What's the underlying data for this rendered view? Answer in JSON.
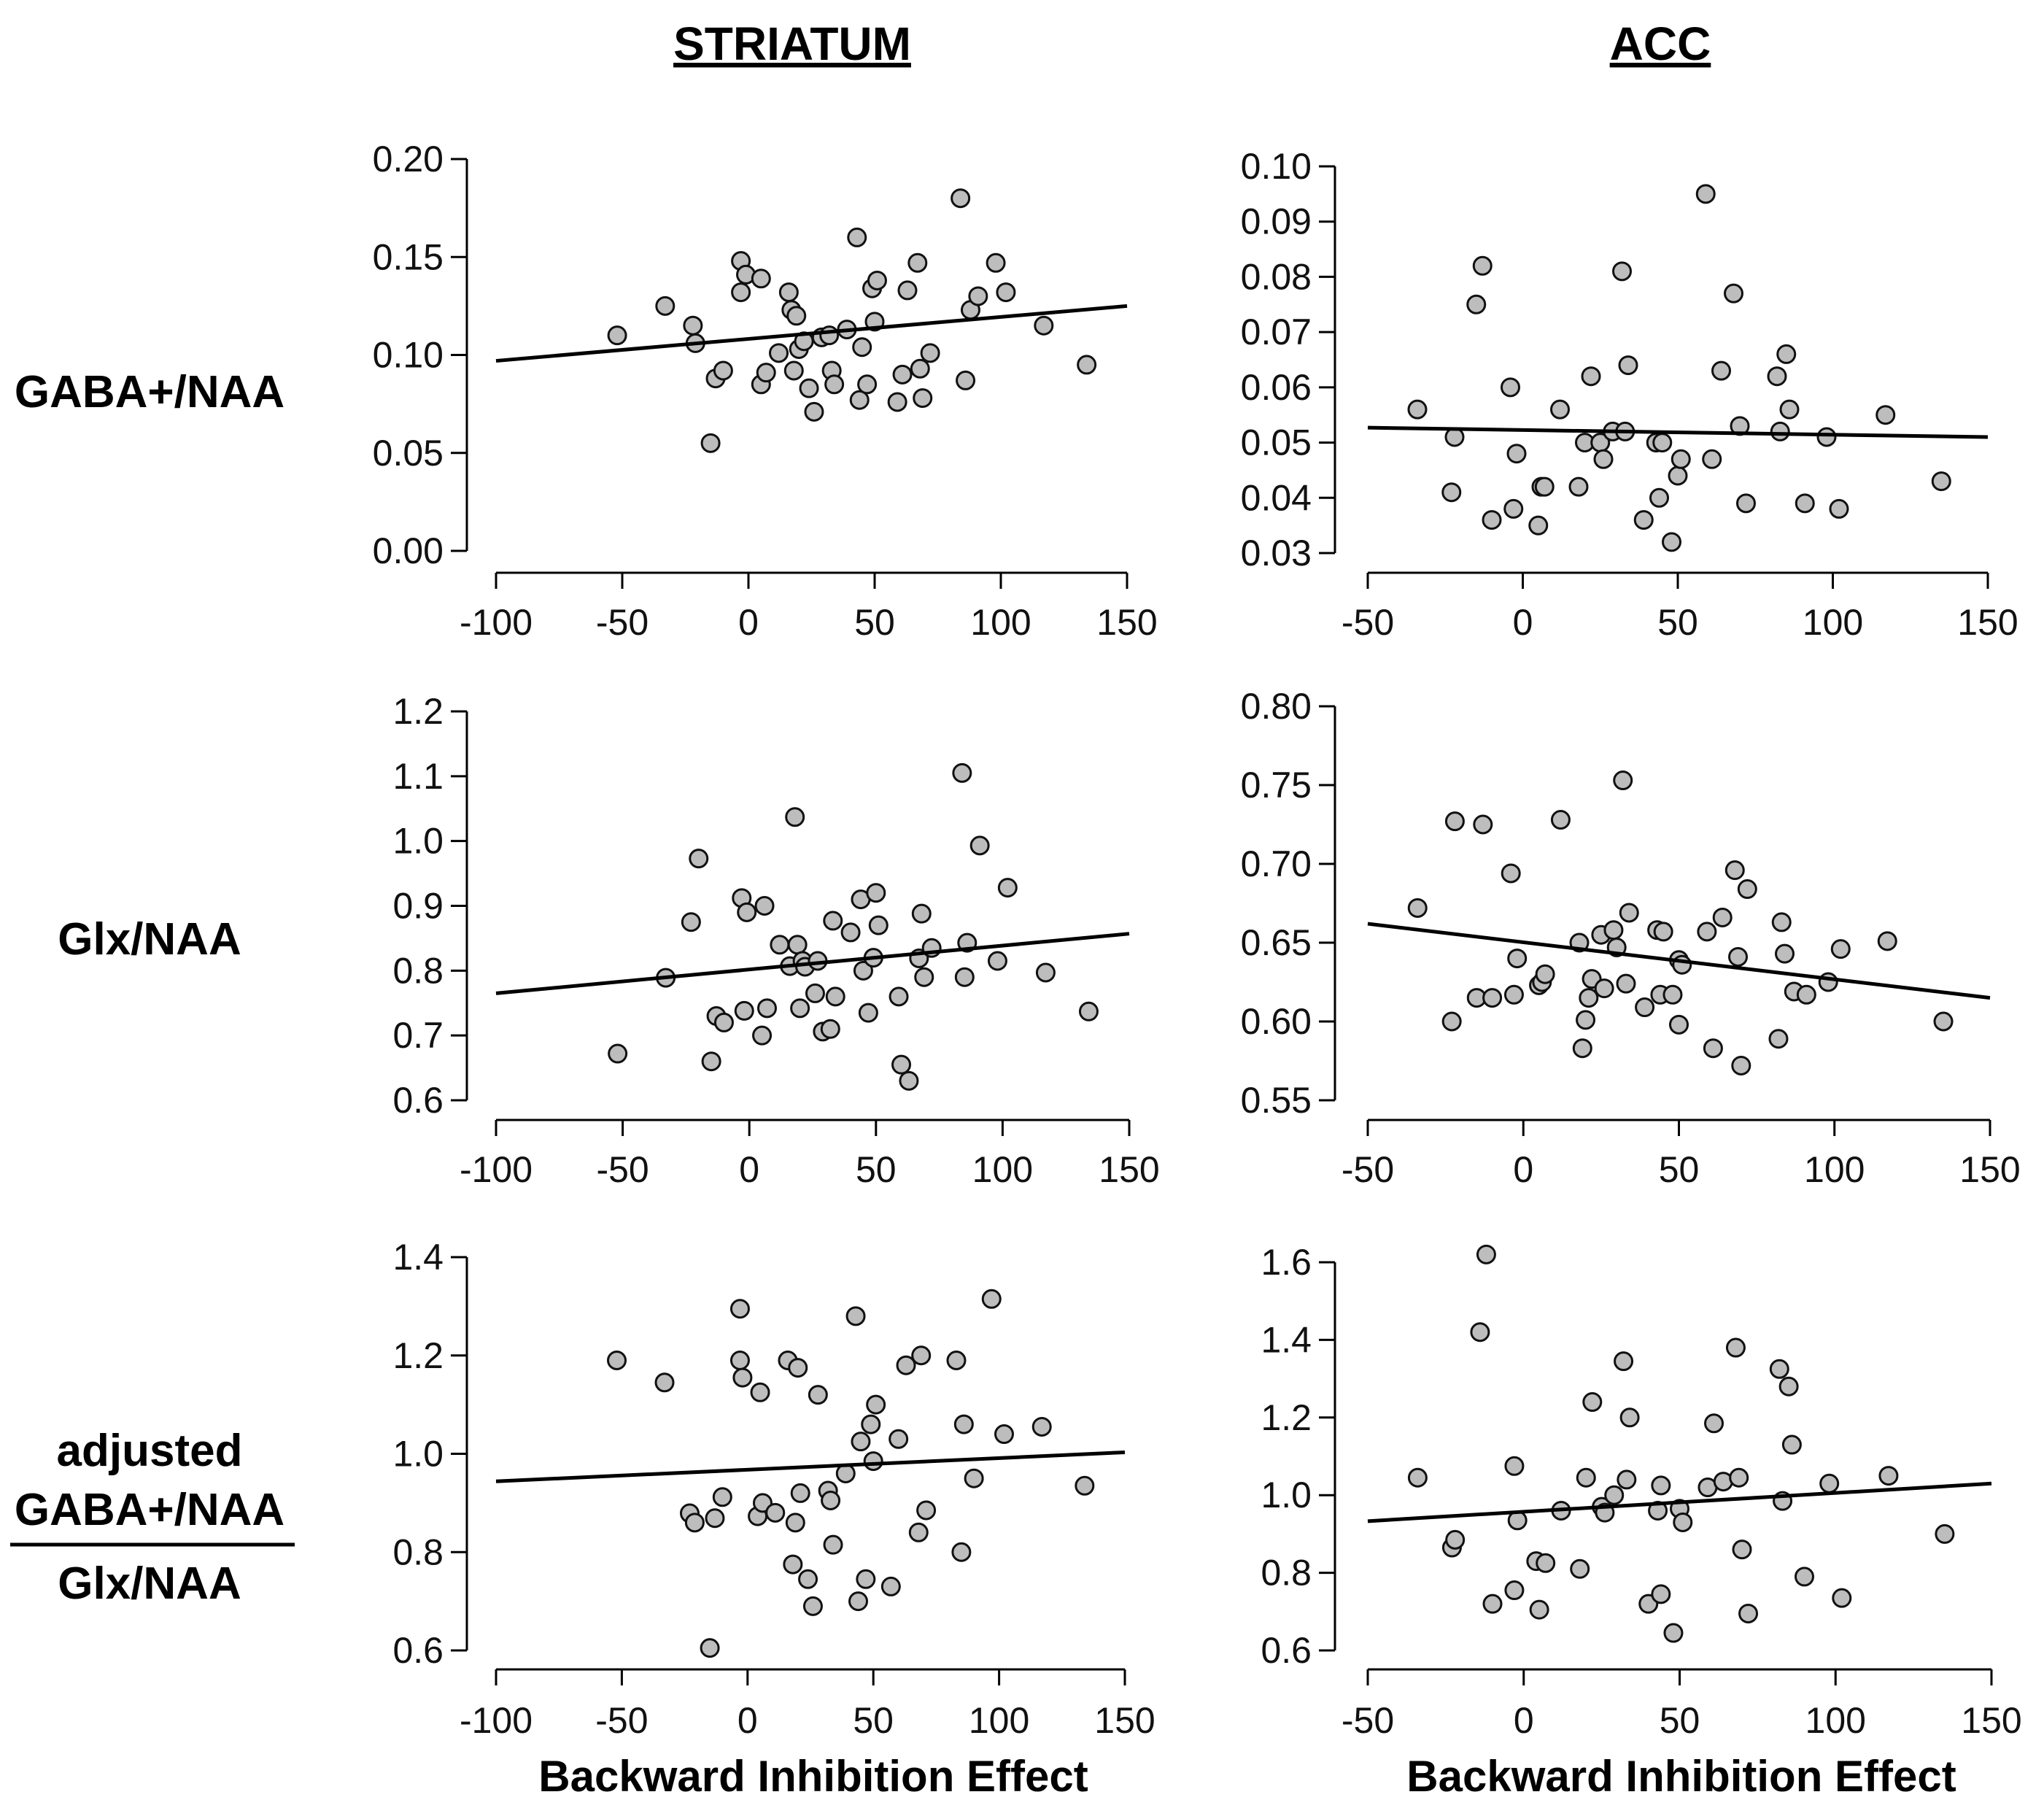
{
  "figure": {
    "col_titles": [
      "STRIATUM",
      "ACC"
    ],
    "row_labels": [
      {
        "lines": [
          "GABA+/NAA"
        ]
      },
      {
        "lines": [
          "Glx/NAA"
        ]
      },
      {
        "numerator": [
          "adjusted",
          "GABA+/NAA"
        ],
        "denominator": "Glx/NAA"
      }
    ],
    "xlabel": "Backward Inhibition Effect"
  },
  "chart_data": [
    {
      "id": "striatum-gaba",
      "type": "scatter",
      "xlabel": "Backward Inhibition Effect",
      "ylabel": "GABA+/NAA",
      "xlim": [
        -100,
        150
      ],
      "ylim": [
        0.0,
        0.2
      ],
      "xticks": [
        -100,
        -50,
        0,
        50,
        100,
        150
      ],
      "xtick_labels": [
        "-100",
        "-50",
        "0",
        "50",
        "100",
        "150"
      ],
      "yticks": [
        0.0,
        0.05,
        0.1,
        0.15,
        0.2
      ],
      "ytick_labels": [
        "0.00",
        "0.05",
        "0.10",
        "0.15",
        "0.20"
      ],
      "fit_line": {
        "x": [
          -100,
          150
        ],
        "y": [
          0.097,
          0.125
        ]
      },
      "x": [
        -52,
        -33,
        -22,
        -21,
        -15,
        -13,
        -10,
        -3,
        -3,
        -1,
        5,
        5,
        7,
        12,
        16,
        17,
        18,
        19,
        20,
        22,
        24,
        26,
        29,
        32,
        33,
        34,
        39,
        43,
        44,
        45,
        47,
        49,
        50,
        51,
        59,
        61,
        63,
        67,
        68,
        69,
        72,
        84,
        86,
        88,
        91,
        98,
        102,
        117,
        134
      ],
      "y": [
        0.11,
        0.125,
        0.115,
        0.106,
        0.055,
        0.088,
        0.092,
        0.148,
        0.132,
        0.141,
        0.085,
        0.139,
        0.091,
        0.101,
        0.132,
        0.123,
        0.092,
        0.12,
        0.103,
        0.107,
        0.083,
        0.071,
        0.109,
        0.11,
        0.092,
        0.085,
        0.113,
        0.16,
        0.077,
        0.104,
        0.085,
        0.134,
        0.117,
        0.138,
        0.076,
        0.09,
        0.133,
        0.147,
        0.093,
        0.078,
        0.101,
        0.18,
        0.087,
        0.123,
        0.13,
        0.147,
        0.132,
        0.115,
        0.095
      ]
    },
    {
      "id": "acc-gaba",
      "type": "scatter",
      "xlabel": "Backward Inhibition Effect",
      "ylabel": "GABA+/NAA",
      "xlim": [
        -50,
        150
      ],
      "ylim": [
        0.03,
        0.1
      ],
      "xticks": [
        -50,
        0,
        50,
        100,
        150
      ],
      "xtick_labels": [
        "-50",
        "0",
        "50",
        "100",
        "150"
      ],
      "yticks": [
        0.03,
        0.04,
        0.05,
        0.06,
        0.07,
        0.08,
        0.09,
        0.1
      ],
      "ytick_labels": [
        "0.03",
        "0.04",
        "0.05",
        "0.06",
        "0.07",
        "0.08",
        "0.09",
        "0.10"
      ],
      "fit_line": {
        "x": [
          -50,
          150
        ],
        "y": [
          0.0527,
          0.051
        ]
      },
      "x": [
        -34,
        -23,
        -22,
        -15,
        -13,
        -10,
        -4,
        -3,
        -2,
        5,
        6,
        7,
        12,
        18,
        20,
        22,
        25,
        26,
        29,
        32,
        33,
        34,
        39,
        43,
        44,
        45,
        48,
        50,
        51,
        59,
        61,
        64,
        68,
        70,
        72,
        82,
        83,
        85,
        86,
        91,
        98,
        102,
        117,
        135
      ],
      "y": [
        0.056,
        0.041,
        0.051,
        0.075,
        0.082,
        0.036,
        0.06,
        0.038,
        0.048,
        0.035,
        0.042,
        0.042,
        0.056,
        0.042,
        0.05,
        0.062,
        0.05,
        0.047,
        0.052,
        0.081,
        0.052,
        0.064,
        0.036,
        0.05,
        0.04,
        0.05,
        0.032,
        0.044,
        0.047,
        0.095,
        0.047,
        0.063,
        0.077,
        0.053,
        0.039,
        0.062,
        0.052,
        0.066,
        0.056,
        0.039,
        0.051,
        0.038,
        0.055,
        0.043
      ]
    },
    {
      "id": "striatum-glx",
      "type": "scatter",
      "xlabel": "Backward Inhibition Effect",
      "ylabel": "Glx/NAA",
      "xlim": [
        -100,
        150
      ],
      "ylim": [
        0.6,
        1.2
      ],
      "xticks": [
        -100,
        -50,
        0,
        50,
        100,
        150
      ],
      "xtick_labels": [
        "-100",
        "-50",
        "0",
        "50",
        "100",
        "150"
      ],
      "yticks": [
        0.6,
        0.7,
        0.8,
        0.9,
        1.0,
        1.1,
        1.2
      ],
      "ytick_labels": [
        "0.6",
        "0.7",
        "0.8",
        "0.9",
        "1.0",
        "1.1",
        "1.2"
      ],
      "fit_line": {
        "x": [
          -100,
          150
        ],
        "y": [
          0.765,
          0.857
        ]
      },
      "x": [
        -52,
        -33,
        -23,
        -20,
        -15,
        -13,
        -10,
        -3,
        -2,
        -1,
        5,
        6,
        7,
        12,
        16,
        18,
        19,
        20,
        21,
        22,
        26,
        27,
        29,
        32,
        33,
        34,
        40,
        44,
        45,
        47,
        49,
        50,
        51,
        59,
        60,
        63,
        67,
        68,
        69,
        72,
        84,
        85,
        86,
        91,
        98,
        102,
        117,
        134
      ],
      "y": [
        0.672,
        0.789,
        0.875,
        0.973,
        0.66,
        0.73,
        0.72,
        0.912,
        0.738,
        0.89,
        0.7,
        0.9,
        0.742,
        0.84,
        0.807,
        1.037,
        0.84,
        0.742,
        0.815,
        0.806,
        0.765,
        0.815,
        0.706,
        0.71,
        0.877,
        0.76,
        0.859,
        0.91,
        0.8,
        0.735,
        0.82,
        0.92,
        0.87,
        0.76,
        0.655,
        0.63,
        0.819,
        0.888,
        0.79,
        0.835,
        1.105,
        0.79,
        0.843,
        0.993,
        0.815,
        0.928,
        0.797,
        0.737
      ]
    },
    {
      "id": "acc-glx",
      "type": "scatter",
      "xlabel": "Backward Inhibition Effect",
      "ylabel": "Glx/NAA",
      "xlim": [
        -50,
        150
      ],
      "ylim": [
        0.55,
        0.8
      ],
      "xticks": [
        -50,
        0,
        50,
        100,
        150
      ],
      "xtick_labels": [
        "-50",
        "0",
        "50",
        "100",
        "150"
      ],
      "yticks": [
        0.55,
        0.6,
        0.65,
        0.7,
        0.75,
        0.8
      ],
      "ytick_labels": [
        "0.55",
        "0.60",
        "0.65",
        "0.70",
        "0.75",
        "0.80"
      ],
      "fit_line": {
        "x": [
          -50,
          150
        ],
        "y": [
          0.662,
          0.615
        ]
      },
      "x": [
        -34,
        -23,
        -22,
        -15,
        -13,
        -10,
        -4,
        -3,
        -2,
        5,
        6,
        7,
        12,
        18,
        19,
        20,
        21,
        22,
        25,
        26,
        29,
        30,
        32,
        33,
        34,
        39,
        43,
        44,
        45,
        48,
        50,
        50,
        51,
        59,
        61,
        64,
        68,
        69,
        70,
        72,
        82,
        83,
        84,
        87,
        91,
        98,
        102,
        117,
        135
      ],
      "y": [
        0.672,
        0.6,
        0.727,
        0.615,
        0.725,
        0.615,
        0.694,
        0.617,
        0.64,
        0.623,
        0.625,
        0.63,
        0.728,
        0.65,
        0.583,
        0.601,
        0.615,
        0.627,
        0.655,
        0.621,
        0.658,
        0.647,
        0.753,
        0.624,
        0.669,
        0.609,
        0.658,
        0.617,
        0.657,
        0.617,
        0.598,
        0.639,
        0.636,
        0.657,
        0.583,
        0.666,
        0.696,
        0.641,
        0.572,
        0.684,
        0.589,
        0.663,
        0.643,
        0.619,
        0.617,
        0.625,
        0.646,
        0.651,
        0.6
      ]
    },
    {
      "id": "striatum-ratio",
      "type": "scatter",
      "xlabel": "Backward Inhibition Effect",
      "ylabel": "adjusted GABA+/NAA / Glx/NAA",
      "xlim": [
        -100,
        150
      ],
      "ylim": [
        0.6,
        1.4
      ],
      "xticks": [
        -100,
        -50,
        0,
        50,
        100,
        150
      ],
      "xtick_labels": [
        "-100",
        "-50",
        "0",
        "50",
        "100",
        "150"
      ],
      "yticks": [
        0.6,
        0.8,
        1.0,
        1.2,
        1.4
      ],
      "ytick_labels": [
        "0.6",
        "0.8",
        "1.0",
        "1.2",
        "1.4"
      ],
      "fit_line": {
        "x": [
          -100,
          150
        ],
        "y": [
          0.944,
          1.003
        ]
      },
      "x": [
        -52,
        -33,
        -23,
        -21,
        -15,
        -13,
        -10,
        -3,
        -3,
        -2,
        4,
        5,
        6,
        11,
        16,
        18,
        19,
        20,
        21,
        24,
        26,
        28,
        32,
        33,
        34,
        39,
        43,
        44,
        45,
        47,
        49,
        50,
        51,
        57,
        60,
        63,
        68,
        69,
        71,
        83,
        85,
        86,
        90,
        97,
        102,
        117,
        134
      ],
      "y": [
        1.19,
        1.145,
        0.879,
        0.86,
        0.605,
        0.869,
        0.912,
        1.295,
        1.19,
        1.155,
        0.873,
        1.125,
        0.9,
        0.88,
        1.19,
        0.775,
        0.86,
        1.175,
        0.92,
        0.745,
        0.69,
        1.12,
        0.925,
        0.905,
        0.815,
        0.96,
        1.28,
        0.7,
        1.025,
        0.745,
        1.06,
        0.985,
        1.1,
        0.73,
        1.03,
        1.18,
        0.84,
        1.2,
        0.885,
        1.19,
        0.8,
        1.06,
        0.95,
        1.315,
        1.04,
        1.055,
        0.935
      ]
    },
    {
      "id": "acc-ratio",
      "type": "scatter",
      "xlabel": "Backward Inhibition Effect",
      "ylabel": "adjusted GABA+/NAA / Glx/NAA",
      "xlim": [
        -50,
        150
      ],
      "ylim": [
        0.6,
        1.6
      ],
      "xticks": [
        -50,
        0,
        50,
        100,
        150
      ],
      "xtick_labels": [
        "-50",
        "0",
        "50",
        "100",
        "150"
      ],
      "yticks": [
        0.6,
        0.8,
        1.0,
        1.2,
        1.4,
        1.6
      ],
      "ytick_labels": [
        "0.6",
        "0.8",
        "1.0",
        "1.2",
        "1.4",
        "1.6"
      ],
      "fit_line": {
        "x": [
          -50,
          150
        ],
        "y": [
          0.933,
          1.03
        ]
      },
      "x": [
        -34,
        -23,
        -22,
        -14,
        -12,
        -10,
        -3,
        -3,
        -2,
        4,
        5,
        7,
        12,
        18,
        20,
        22,
        25,
        26,
        29,
        32,
        33,
        34,
        40,
        43,
        44,
        44,
        48,
        50,
        51,
        59,
        61,
        64,
        68,
        69,
        70,
        72,
        82,
        83,
        85,
        86,
        90,
        98,
        102,
        117,
        135
      ],
      "y": [
        1.045,
        0.865,
        0.885,
        1.42,
        1.62,
        0.72,
        1.075,
        0.755,
        0.935,
        0.83,
        0.705,
        0.825,
        0.96,
        0.81,
        1.045,
        1.24,
        0.97,
        0.955,
        1.0,
        1.345,
        1.04,
        1.2,
        0.72,
        0.96,
        1.025,
        0.745,
        0.645,
        0.965,
        0.93,
        1.02,
        1.185,
        1.035,
        1.38,
        1.045,
        0.86,
        0.695,
        1.325,
        0.985,
        1.28,
        1.13,
        0.79,
        1.03,
        0.735,
        1.05,
        0.9
      ]
    }
  ]
}
